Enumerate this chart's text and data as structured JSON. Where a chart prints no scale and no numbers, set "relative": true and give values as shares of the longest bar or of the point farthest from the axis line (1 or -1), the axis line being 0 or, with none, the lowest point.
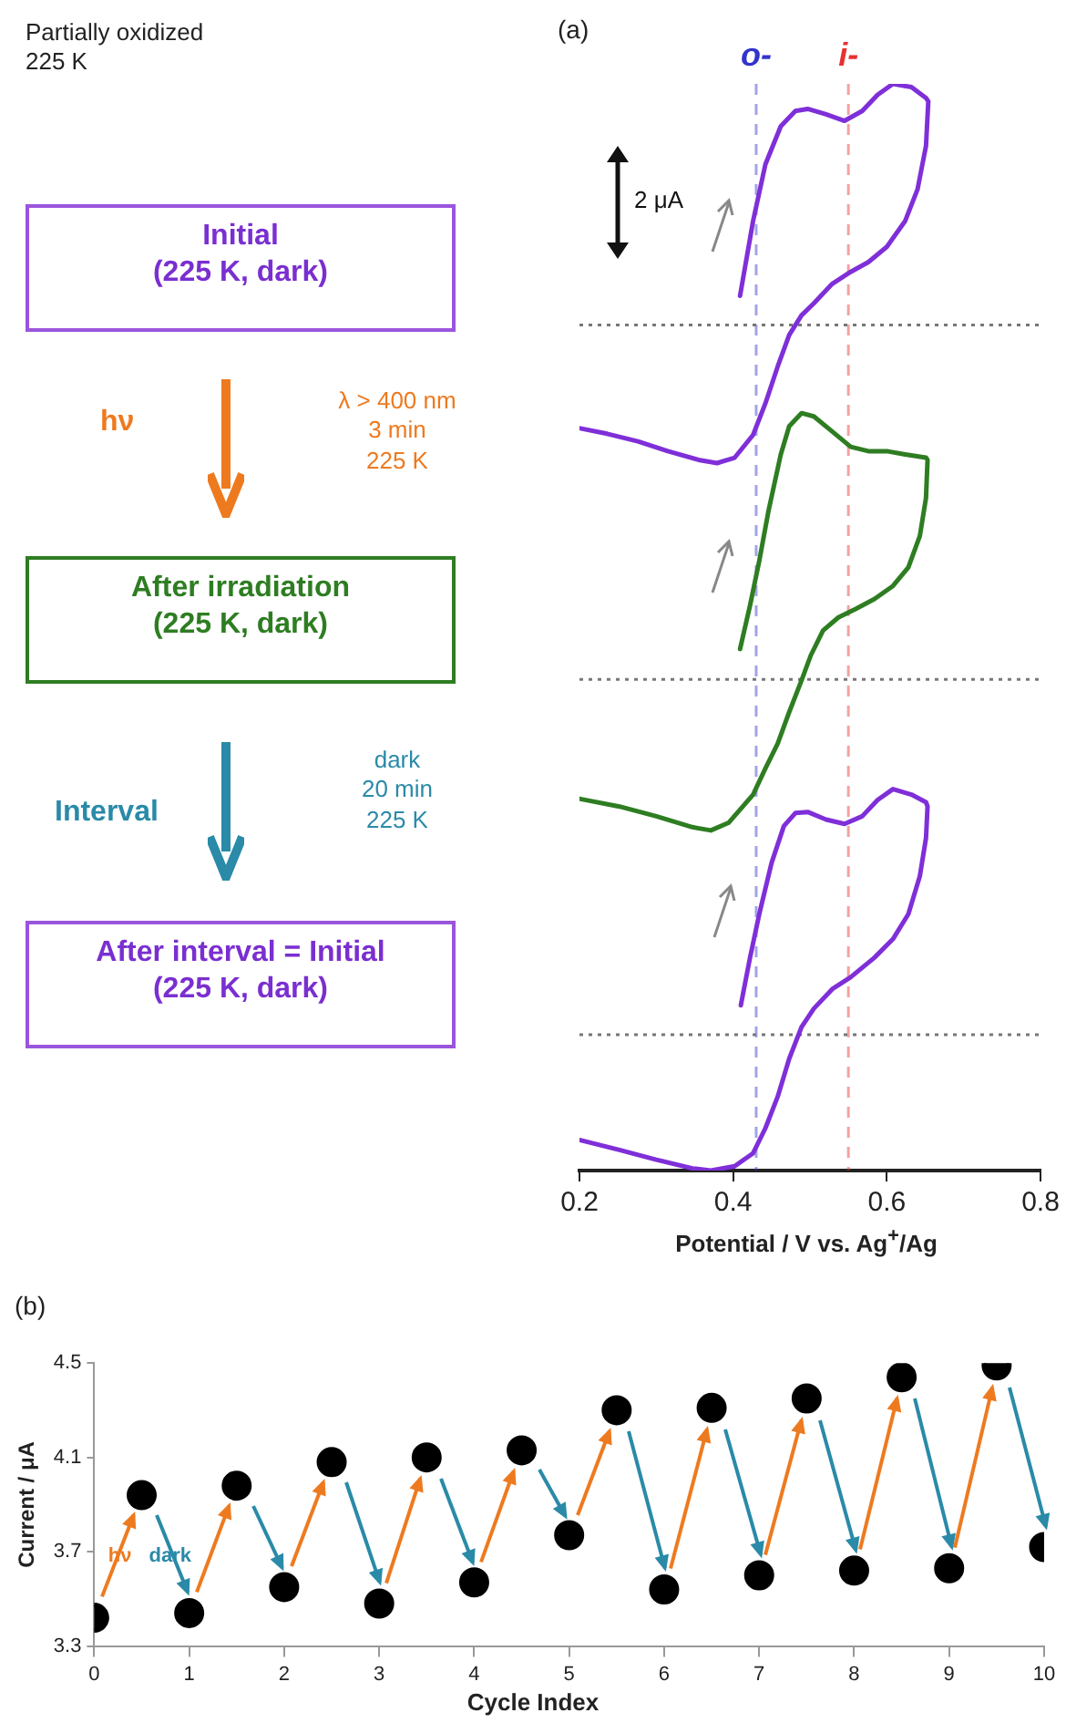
{
  "chart_data": [
    {
      "type": "line",
      "title": "(a)",
      "xlabel": "Potential / V vs. Ag$^{+}$/Ag",
      "relative": true,
      "xlim": [
        0.2,
        0.8
      ],
      "xticks": [
        0.2,
        0.4,
        0.6,
        0.8
      ],
      "grid": false,
      "legend": false,
      "marker": "none",
      "line_style": "solid",
      "series": [
        {
          "color": "#7f2fd8",
          "x": [
            0.409,
            0.426,
            0.442,
            0.462,
            0.481,
            0.497,
            0.521,
            0.545,
            0.568,
            0.588,
            0.608,
            0.632,
            0.651,
            0.654,
            0.651,
            0.64,
            0.624,
            0.6,
            0.576,
            0.553,
            0.529,
            0.505,
            0.489,
            0.473,
            0.458,
            0.442,
            0.426,
            0.402,
            0.379,
            0.355,
            0.315,
            0.276,
            0.236,
            0.201
          ],
          "values": [
            0.805,
            0.874,
            0.926,
            0.961,
            0.975,
            0.977,
            0.972,
            0.966,
            0.975,
            0.99,
            1.0,
            0.997,
            0.987,
            0.984,
            0.943,
            0.903,
            0.874,
            0.85,
            0.836,
            0.827,
            0.816,
            0.798,
            0.787,
            0.769,
            0.74,
            0.706,
            0.677,
            0.656,
            0.651,
            0.654,
            0.662,
            0.671,
            0.678,
            0.683
          ]
        },
        {
          "color": "#2e7d22",
          "x": [
            0.409,
            0.422,
            0.434,
            0.446,
            0.462,
            0.473,
            0.489,
            0.505,
            0.529,
            0.553,
            0.576,
            0.6,
            0.624,
            0.651,
            0.653,
            0.651,
            0.643,
            0.628,
            0.608,
            0.584,
            0.56,
            0.537,
            0.517,
            0.501,
            0.489,
            0.473,
            0.458,
            0.442,
            0.43,
            0.426,
            0.394,
            0.371,
            0.347,
            0.3,
            0.252,
            0.201
          ],
          "values": [
            0.48,
            0.52,
            0.561,
            0.607,
            0.659,
            0.685,
            0.697,
            0.694,
            0.68,
            0.666,
            0.662,
            0.662,
            0.659,
            0.656,
            0.654,
            0.619,
            0.584,
            0.555,
            0.538,
            0.526,
            0.517,
            0.509,
            0.497,
            0.474,
            0.451,
            0.422,
            0.393,
            0.37,
            0.352,
            0.346,
            0.32,
            0.313,
            0.316,
            0.326,
            0.335,
            0.342
          ]
        },
        {
          "color": "#7f2fd8",
          "x": [
            0.41,
            0.422,
            0.434,
            0.45,
            0.466,
            0.481,
            0.497,
            0.521,
            0.545,
            0.568,
            0.588,
            0.608,
            0.632,
            0.651,
            0.653,
            0.651,
            0.643,
            0.628,
            0.608,
            0.584,
            0.553,
            0.529,
            0.505,
            0.489,
            0.473,
            0.458,
            0.442,
            0.426,
            0.402,
            0.371,
            0.347,
            0.3,
            0.252,
            0.201
          ],
          "values": [
            0.152,
            0.196,
            0.236,
            0.283,
            0.317,
            0.329,
            0.33,
            0.323,
            0.319,
            0.326,
            0.341,
            0.351,
            0.346,
            0.339,
            0.335,
            0.306,
            0.271,
            0.236,
            0.213,
            0.196,
            0.178,
            0.167,
            0.149,
            0.132,
            0.103,
            0.068,
            0.039,
            0.016,
            0.004,
            0.0,
            0.002,
            0.01,
            0.019,
            0.028
          ]
        }
      ],
      "ref_lines": [
        {
          "axis": "x",
          "value": 0.43,
          "label": "o-",
          "color": "#3333cc",
          "line_style": "dashed"
        },
        {
          "axis": "x",
          "value": 0.55,
          "label": "i-",
          "color": "#e83030",
          "line_style": "dashed"
        },
        {
          "axis": "y",
          "value": 0.778,
          "color": "#777777",
          "line_style": "dotted"
        },
        {
          "axis": "y",
          "value": 0.452,
          "color": "#777777",
          "line_style": "dotted"
        },
        {
          "axis": "y",
          "value": 0.125,
          "color": "#777777",
          "line_style": "dotted"
        }
      ],
      "annotations": [
        "Partially oxidized\n225 K",
        "Initial\n(225 K, dark)",
        "hν",
        "λ > 400 nm\n3 min\n225 K",
        "After irradiation\n(225 K, dark)",
        "Interval",
        "dark\n20 min\n225 K",
        "After interval = Initial\n(225 K, dark)",
        "2 μA"
      ]
    },
    {
      "type": "scatter",
      "title": "(b)",
      "xlabel": "Cycle Index",
      "ylabel": "Current / μA",
      "xlim": [
        0,
        10
      ],
      "xticks": [
        0,
        1,
        2,
        3,
        4,
        5,
        6,
        7,
        8,
        9,
        10
      ],
      "ylim": [
        3.3,
        4.5
      ],
      "yticks": [
        3.3,
        3.7,
        4.1,
        4.5
      ],
      "grid": false,
      "legend": false,
      "marker": "circle",
      "x": [
        0,
        0.5,
        1,
        1.5,
        2,
        2.5,
        3,
        3.5,
        4,
        4.5,
        5,
        5.5,
        6,
        6.5,
        7,
        7.5,
        8,
        8.5,
        9,
        9.5,
        10
      ],
      "series": [
        {
          "color": "#000000",
          "values": [
            3.42,
            3.94,
            3.44,
            3.98,
            3.55,
            4.08,
            3.48,
            4.1,
            3.57,
            4.13,
            3.77,
            4.3,
            3.54,
            4.31,
            3.6,
            4.35,
            3.62,
            4.44,
            3.63,
            4.49,
            3.72
          ]
        }
      ],
      "annotations": [
        {
          "text": "hν",
          "x": 0.27,
          "y": 3.68
        },
        {
          "text": "dark",
          "x": 0.8,
          "y": 3.68
        }
      ]
    }
  ]
}
